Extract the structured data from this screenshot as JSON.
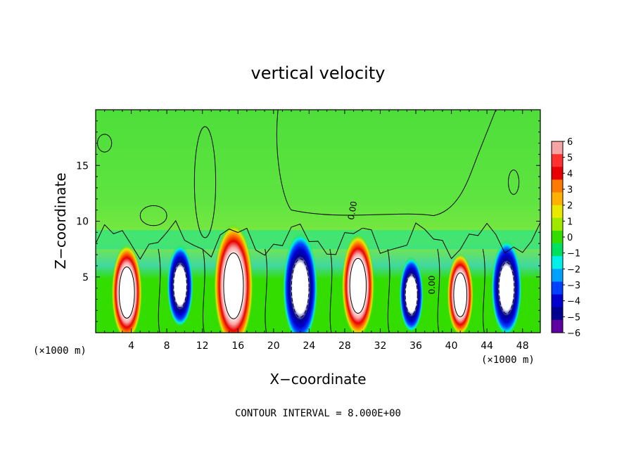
{
  "chart_data": {
    "type": "heatmap",
    "title": "vertical velocity",
    "xlabel": "X−coordinate",
    "ylabel": "Z−coordinate",
    "x_units": "(×1000 m)",
    "x_ticks": [
      4,
      8,
      12,
      16,
      20,
      24,
      28,
      32,
      36,
      40,
      44,
      48
    ],
    "y_ticks": [
      5,
      10,
      15
    ],
    "xlim": [
      0,
      50
    ],
    "ylim": [
      0,
      20
    ],
    "colorbar": {
      "ticks": [
        6,
        5,
        4,
        3,
        2,
        1,
        0,
        -1,
        -2,
        -3,
        -4,
        -5,
        -6
      ],
      "labels": [
        "6",
        "5",
        "4",
        "3",
        "2",
        "1",
        "0",
        "−1",
        "−2",
        "−3",
        "−4",
        "−5",
        "−6"
      ],
      "colors": [
        "#f7a4a4",
        "#ff3030",
        "#e80000",
        "#ff7a00",
        "#ffb000",
        "#e8e800",
        "#9fe800",
        "#33dd00",
        "#00e060",
        "#00f0e8",
        "#00a0ff",
        "#0040ff",
        "#0000d0",
        "#000090",
        "#6000a0"
      ]
    },
    "contour_interval_label": "CONTOUR INTERVAL = 8.000E+00",
    "contour_value_label": "0.00",
    "cells": [
      {
        "x": 3.5,
        "z": 3.6,
        "sign": 1,
        "amp": 14
      },
      {
        "x": 9.5,
        "z": 4.2,
        "sign": -1,
        "amp": 12
      },
      {
        "x": 15.5,
        "z": 4.2,
        "sign": 1,
        "amp": 18
      },
      {
        "x": 23.0,
        "z": 4.0,
        "sign": -1,
        "amp": 16
      },
      {
        "x": 29.5,
        "z": 4.2,
        "sign": 1,
        "amp": 15
      },
      {
        "x": 35.5,
        "z": 3.4,
        "sign": -1,
        "amp": 11
      },
      {
        "x": 41.0,
        "z": 3.4,
        "sign": 1,
        "amp": 12
      },
      {
        "x": 46.2,
        "z": 4.0,
        "sign": -1,
        "amp": 14
      }
    ]
  }
}
